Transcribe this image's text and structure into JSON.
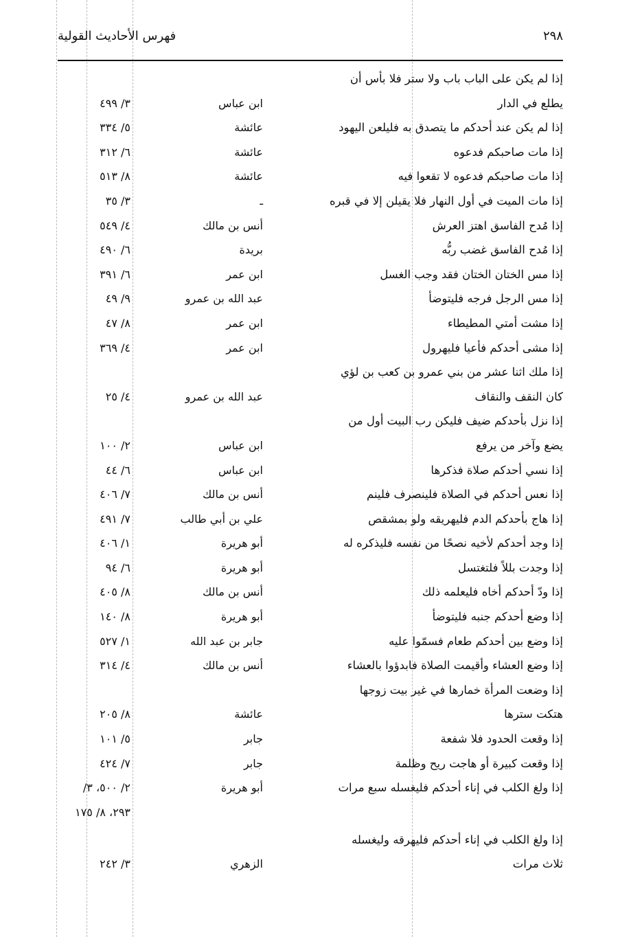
{
  "header": {
    "title": "فهرس الأحاديث القولية",
    "page_number": "٢٩٨"
  },
  "rows": [
    {
      "text": "إذا لم يكن على الباب باب ولا ستر فلا بأس أن",
      "narrator": "",
      "ref": ""
    },
    {
      "text": "يطلع في الدار",
      "narrator": "ابن عباس",
      "ref": "٣/ ٤٩٩"
    },
    {
      "text": "إذا لم يكن عند أحدكم ما يتصدق به فليلعن اليهود",
      "narrator": "عائشة",
      "ref": "٥/ ٣٣٤"
    },
    {
      "text": "إذا مات صاحبكم فدعوه",
      "narrator": "عائشة",
      "ref": "٦/ ٣١٢"
    },
    {
      "text": "إذا مات صاحبكم فدعوه لا تقعوا فيه",
      "narrator": "عائشة",
      "ref": "٨/ ٥١٣"
    },
    {
      "text": "إذا مات الميت في أول النهار فلا يقيلن إلا في قبره",
      "narrator": "ـ",
      "ref": "٣/ ٣٥"
    },
    {
      "text": "إذا مُدح الفاسق اهتز العرش",
      "narrator": "أنس بن مالك",
      "ref": "٤/ ٥٤٩"
    },
    {
      "text": "إذا مُدح الفاسق غضب ربُّه",
      "narrator": "بريدة",
      "ref": "٦/ ٤٩٠"
    },
    {
      "text": "إذا مس الختان الختان فقد وجب الغسل",
      "narrator": "ابن عمر",
      "ref": "٦/ ٣٩١"
    },
    {
      "text": "إذا مس الرجل فرجه فليتوضأ",
      "narrator": "عبد الله بن عمرو",
      "ref": "٩/ ٤٩"
    },
    {
      "text": "إذا مشت أمتي المطيطاء",
      "narrator": "ابن عمر",
      "ref": "٨/ ٤٧"
    },
    {
      "text": "إذا مشى أحدكم فأعيا فليهرول",
      "narrator": "ابن عمر",
      "ref": "٤/ ٣٦٩"
    },
    {
      "text": "إذا ملك اثنا عشر من بني عمرو بن كعب بن لؤي",
      "narrator": "",
      "ref": ""
    },
    {
      "text": "كان النقف والنقاف",
      "narrator": "عبد الله بن عمرو",
      "ref": "٤/ ٢٥"
    },
    {
      "text": "إذا نزل بأحدكم ضيف فليكن رب البيت أول من",
      "narrator": "",
      "ref": ""
    },
    {
      "text": "يضع وآخر من يرفع",
      "narrator": "ابن عباس",
      "ref": "٢/ ١٠٠"
    },
    {
      "text": "إذا نسي أحدكم صلاة فذكرها",
      "narrator": "ابن عباس",
      "ref": "٦/ ٤٤"
    },
    {
      "text": "إذا نعس أحدكم في الصلاة فلينصرف فلينم",
      "narrator": "أنس بن مالك",
      "ref": "٧/ ٤٠٦"
    },
    {
      "text": "إذا هاج بأحدكم الدم فليهريقه ولو بمشقص",
      "narrator": "علي بن أبي طالب",
      "ref": "٧/ ٤٩١"
    },
    {
      "text": "إذا وجد أحدكم لأخيه نصحًا من نفسه فليذكره له",
      "narrator": "أبو هريرة",
      "ref": "١/ ٤٠٦"
    },
    {
      "text": "إذا وجدت بللاً فلتغتسل",
      "narrator": "أبو هريرة",
      "ref": "٦/ ٩٤"
    },
    {
      "text": "إذا ودّ أحدكم أخاه فليعلمه ذلك",
      "narrator": "أنس بن مالك",
      "ref": "٨/ ٤٠٥"
    },
    {
      "text": "إذا وضع أحدكم جنبه فليتوضأ",
      "narrator": "أبو هريرة",
      "ref": "٨/ ١٤٠"
    },
    {
      "text": "إذا وضع بين أحدكم طعام فسمّوا عليه",
      "narrator": "جابر بن عبد الله",
      "ref": "١/ ٥٢٧"
    },
    {
      "text": "إذا وضع العشاء وأقيمت الصلاة فابدؤوا بالعشاء",
      "narrator": "أنس بن مالك",
      "ref": "٤/ ٣١٤"
    },
    {
      "text": "إذا وضعت المرأة خمارها في غير بيت زوجها",
      "narrator": "",
      "ref": ""
    },
    {
      "text": "هتكت سترها",
      "narrator": "عائشة",
      "ref": "٨/ ٢٠٥"
    },
    {
      "text": "إذا وقعت الحدود فلا شفعة",
      "narrator": "جابر",
      "ref": "٥/ ١٠١"
    },
    {
      "text": "إذا وقعت كبيرة أو هاجت ريح وظلمة",
      "narrator": "جابر",
      "ref": "٧/ ٤٢٤"
    },
    {
      "text": "إذا ولغ الكلب في إناء أحدكم فليغسله سبع مرات",
      "narrator": "أبو هريرة",
      "ref": "٢/ ٥٠٠، ٣/"
    },
    {
      "text": "",
      "narrator": "",
      "ref": "٢٩٣، ٨/ ١٧٥"
    },
    {
      "text": "إذا ولغ الكلب في إناء أحدكم فليهرقه وليغسله",
      "narrator": "",
      "ref": ""
    },
    {
      "text": "ثلاث مرات",
      "narrator": "الزهري",
      "ref": "٣/ ٢٤٢"
    }
  ]
}
